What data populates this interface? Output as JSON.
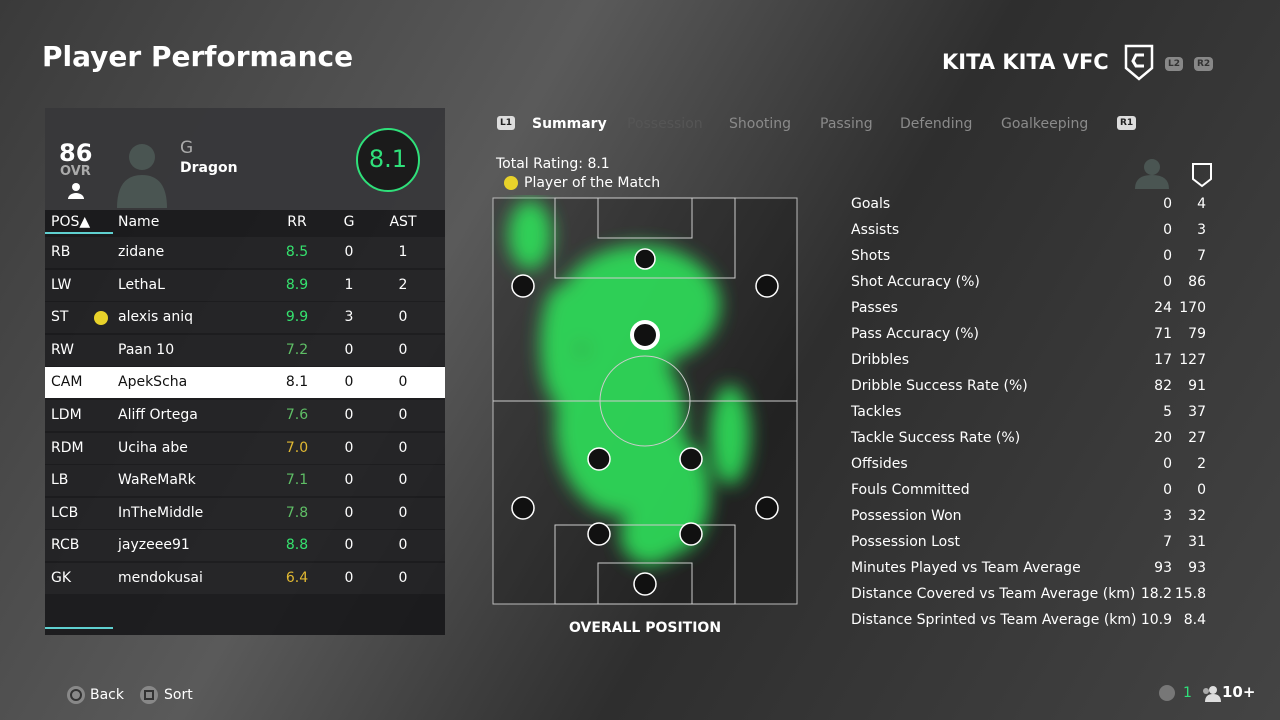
{
  "header": {
    "title": "Player Performance",
    "club": "KITA KITA VFC",
    "buttons": [
      "L2",
      "R2"
    ]
  },
  "player_card": {
    "ovr": "86",
    "ovr_label": "OVR",
    "position": "G",
    "name": "Dragon",
    "rating": "8.1"
  },
  "table": {
    "columns": [
      "POS▲",
      "Name",
      "RR",
      "G",
      "AST"
    ],
    "rows": [
      [
        "RB",
        "zidane",
        "8.5",
        0,
        1
      ],
      [
        "LW",
        "LethaL",
        "8.9",
        1,
        2
      ],
      [
        "ST",
        "alexis aniq",
        "9.9",
        3,
        0
      ],
      [
        "RW",
        "Paan 10",
        "7.2",
        0,
        0
      ],
      [
        "CAM",
        "ApekScha",
        "8.1",
        0,
        0
      ],
      [
        "LDM",
        "Aliff Ortega",
        "7.6",
        0,
        0
      ],
      [
        "RDM",
        "Uciha abe",
        "7.0",
        0,
        0
      ],
      [
        "LB",
        "WaReMaRk",
        "7.1",
        0,
        0
      ],
      [
        "LCB",
        "InTheMiddle",
        "7.8",
        0,
        0
      ],
      [
        "RCB",
        "jayzeee91",
        "8.8",
        0,
        0
      ],
      [
        "GK",
        "mendokusai",
        "6.4",
        0,
        0
      ]
    ]
  },
  "tabs": [
    "L1",
    "Summary",
    "Possession",
    "Shooting",
    "Passing",
    "Defending",
    "Goalkeeping",
    "R1"
  ],
  "summary": {
    "total_rating": "Total Rating: 8.1",
    "award": "Player of the Match",
    "heatmap_caption": "OVERALL POSITION"
  },
  "stats": [
    [
      "Goals",
      0,
      4
    ],
    [
      "Assists",
      0,
      3
    ],
    [
      "Shots",
      0,
      7
    ],
    [
      "Shot Accuracy (%)",
      0,
      86
    ],
    [
      "Passes",
      24,
      170
    ],
    [
      "Pass Accuracy (%)",
      71,
      79
    ],
    [
      "Dribbles",
      17,
      127
    ],
    [
      "Dribble Success Rate (%)",
      82,
      91
    ],
    [
      "Tackles",
      5,
      37
    ],
    [
      "Tackle Success Rate (%)",
      20,
      27
    ],
    [
      "Offsides",
      0,
      2
    ],
    [
      "Fouls Committed",
      0,
      0
    ],
    [
      "Possession Won",
      3,
      32
    ],
    [
      "Possession Lost",
      7,
      31
    ],
    [
      "Minutes Played vs Team Average",
      93,
      93
    ],
    [
      "Distance Covered vs Team Average (km)",
      18.2,
      15.8
    ],
    [
      "Distance Sprinted vs Team Average (km)",
      10.9,
      8.4
    ]
  ],
  "footer": {
    "back": "Back",
    "sort": "Sort",
    "count": "1",
    "players": "10+"
  }
}
